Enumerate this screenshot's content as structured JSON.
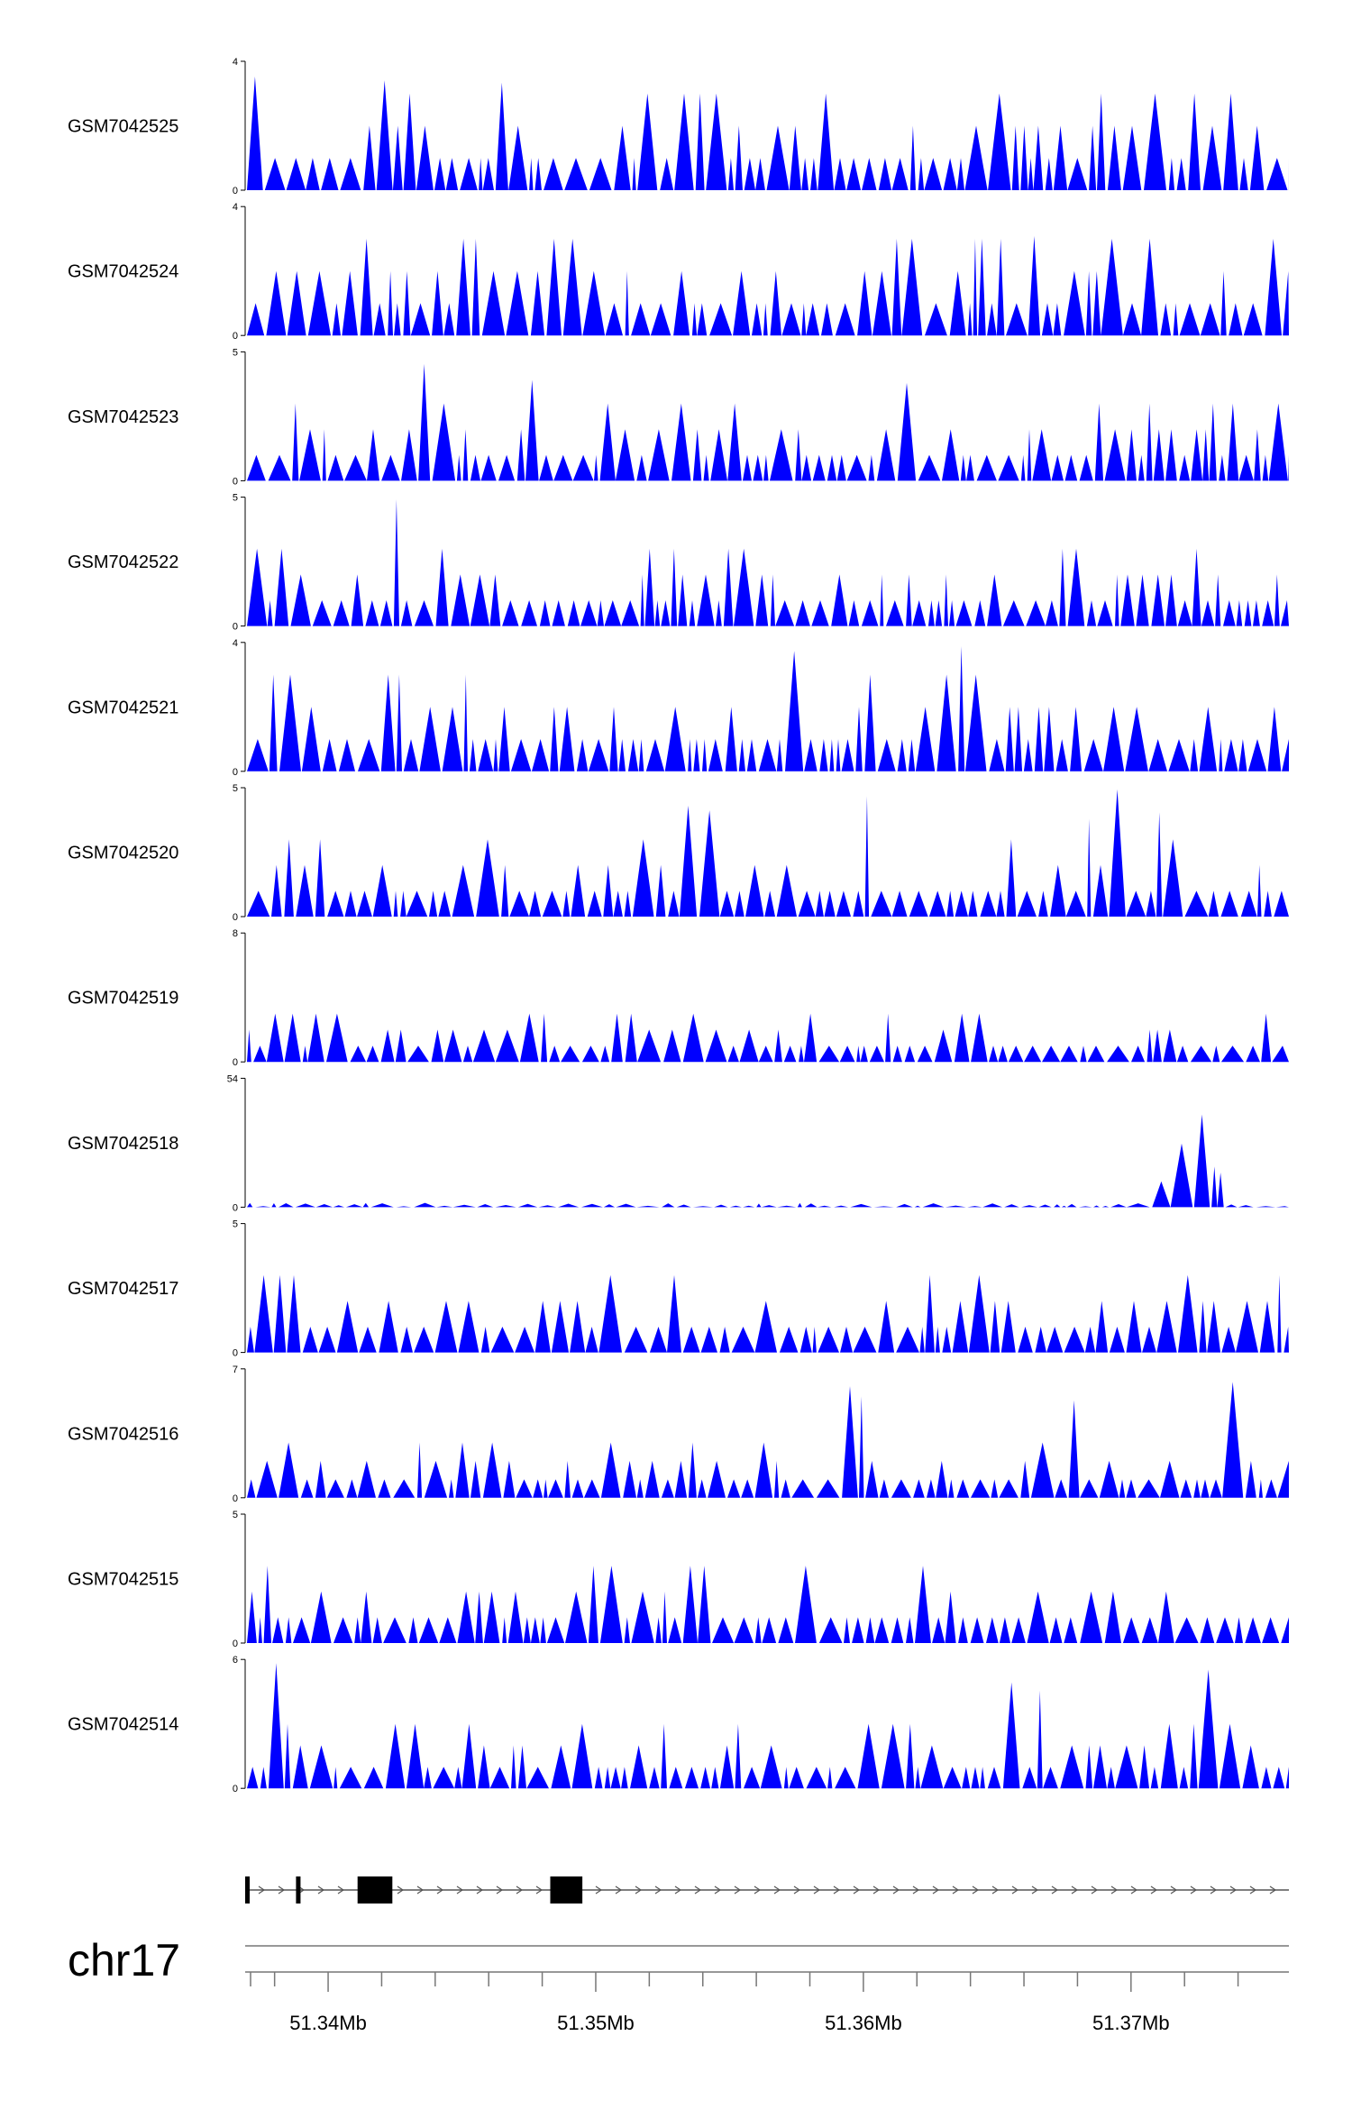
{
  "chart_data": {
    "type": "area",
    "chromosome": "chr17",
    "xlim": [
      51.3369,
      51.3759
    ],
    "x_ticks": [
      "51.34Mb",
      "51.35Mb",
      "51.36Mb",
      "51.37Mb"
    ],
    "color": "#0000ff",
    "tracks": [
      {
        "name": "GSM7042525",
        "ymax": 4
      },
      {
        "name": "GSM7042524",
        "ymax": 4
      },
      {
        "name": "GSM7042523",
        "ymax": 5
      },
      {
        "name": "GSM7042522",
        "ymax": 5
      },
      {
        "name": "GSM7042521",
        "ymax": 4
      },
      {
        "name": "GSM7042520",
        "ymax": 5
      },
      {
        "name": "GSM7042519",
        "ymax": 8
      },
      {
        "name": "GSM7042518",
        "ymax": 54
      },
      {
        "name": "GSM7042517",
        "ymax": 5
      },
      {
        "name": "GSM7042516",
        "ymax": 7
      },
      {
        "name": "GSM7042515",
        "ymax": 5
      },
      {
        "name": "GSM7042514",
        "ymax": 6
      }
    ],
    "gene_exons": [
      [
        51.3369,
        51.33695
      ],
      [
        51.3388,
        51.33885
      ],
      [
        51.3411,
        51.3424
      ],
      [
        51.3483,
        51.3495
      ]
    ]
  }
}
